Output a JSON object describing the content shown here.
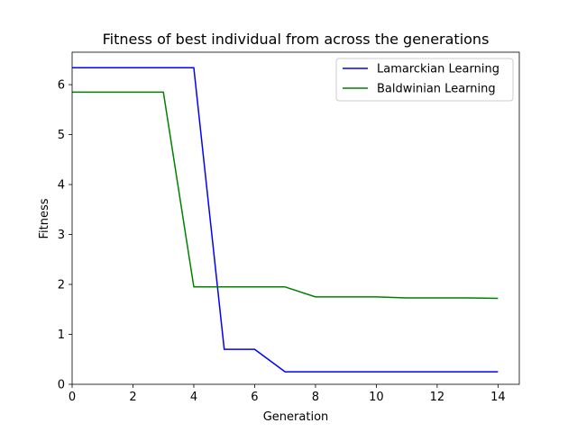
{
  "chart_data": {
    "type": "line",
    "title": "Fitness of best individual from across the generations",
    "xlabel": "Generation",
    "ylabel": "Fitness",
    "xlim": [
      0,
      14.7
    ],
    "ylim": [
      0,
      6.65
    ],
    "xticks": [
      0,
      2,
      4,
      6,
      8,
      10,
      12,
      14
    ],
    "yticks": [
      0,
      1,
      2,
      3,
      4,
      5,
      6
    ],
    "grid": false,
    "legend_position": "top-right",
    "series": [
      {
        "name": "Lamarckian Learning",
        "color": "#0000ff",
        "x": [
          0,
          1,
          2,
          3,
          4,
          5,
          6,
          7,
          8,
          9,
          10,
          11,
          12,
          13,
          14
        ],
        "y": [
          6.34,
          6.34,
          6.34,
          6.34,
          6.34,
          0.7,
          0.7,
          0.25,
          0.25,
          0.25,
          0.25,
          0.25,
          0.25,
          0.25,
          0.25
        ]
      },
      {
        "name": "Baldwinian Learning",
        "color": "#008000",
        "x": [
          0,
          1,
          2,
          3,
          4,
          5,
          6,
          7,
          8,
          9,
          10,
          11,
          12,
          13,
          14
        ],
        "y": [
          5.85,
          5.85,
          5.85,
          5.85,
          1.95,
          1.95,
          1.95,
          1.95,
          1.75,
          1.75,
          1.75,
          1.73,
          1.73,
          1.73,
          1.72
        ]
      }
    ]
  }
}
